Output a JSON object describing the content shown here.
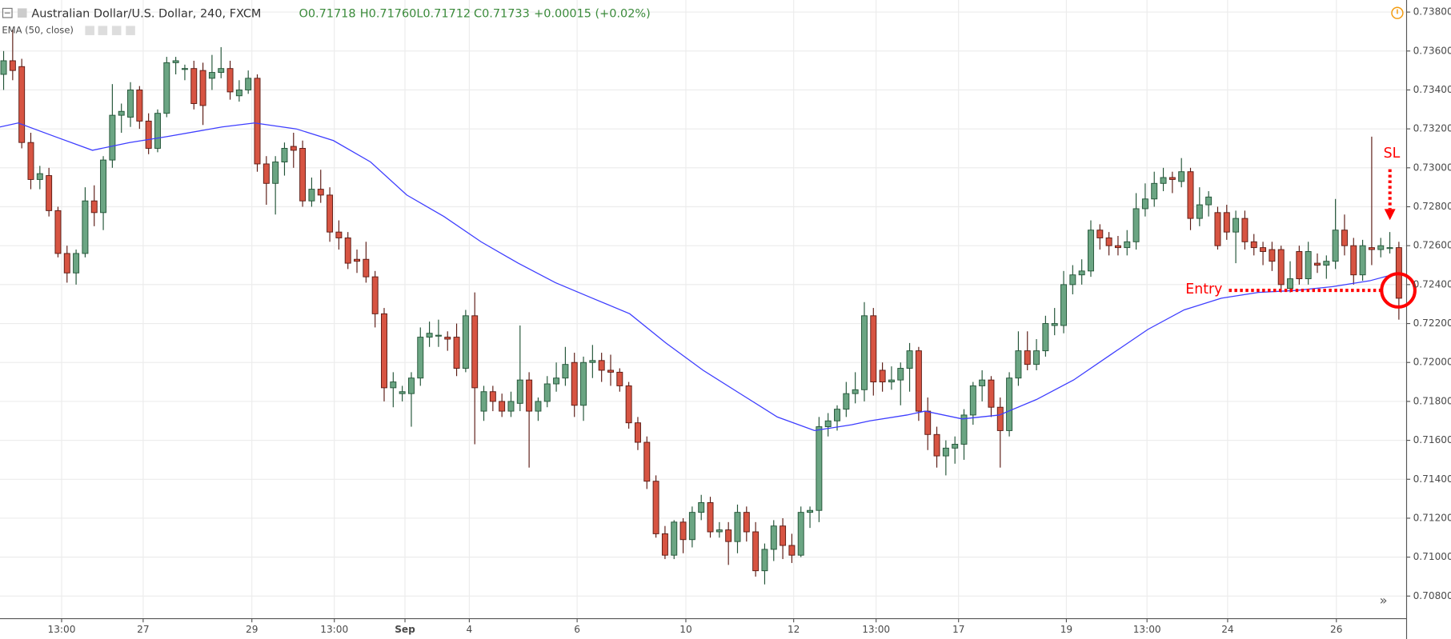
{
  "chart_data": {
    "type": "candlestick",
    "header": {
      "symbol": "Australian Dollar/U.S. Dollar, 240, FXCM",
      "open": "O0.71718",
      "high": "H0.71760",
      "low": "L0.71712",
      "close": "C0.71733",
      "change": "+0.00015 (+0.02%)"
    },
    "up_color": "#6ba583",
    "down_color": "#d75442",
    "ohlc": [
      [
        0.7348,
        0.736,
        0.734,
        0.7355
      ],
      [
        0.7355,
        0.7371,
        0.7345,
        0.735
      ],
      [
        0.7352,
        0.7356,
        0.731,
        0.7313
      ],
      [
        0.7313,
        0.7318,
        0.7289,
        0.7294
      ],
      [
        0.7294,
        0.7301,
        0.7289,
        0.7297
      ],
      [
        0.7296,
        0.73,
        0.7275,
        0.7278
      ],
      [
        0.7278,
        0.728,
        0.7254,
        0.7256
      ],
      [
        0.7256,
        0.726,
        0.7241,
        0.7246
      ],
      [
        0.7246,
        0.7258,
        0.724,
        0.7256
      ],
      [
        0.7256,
        0.729,
        0.7254,
        0.7283
      ],
      [
        0.7283,
        0.7291,
        0.727,
        0.7277
      ],
      [
        0.7277,
        0.7306,
        0.7268,
        0.7304
      ],
      [
        0.7304,
        0.7343,
        0.73,
        0.7327
      ],
      [
        0.7327,
        0.7333,
        0.7318,
        0.7329
      ],
      [
        0.7326,
        0.7344,
        0.7321,
        0.734
      ],
      [
        0.734,
        0.7342,
        0.732,
        0.7324
      ],
      [
        0.7324,
        0.7328,
        0.7307,
        0.731
      ],
      [
        0.731,
        0.733,
        0.7308,
        0.7328
      ],
      [
        0.7328,
        0.7357,
        0.7326,
        0.7354
      ],
      [
        0.7354,
        0.7357,
        0.7348,
        0.7355
      ],
      [
        0.7351,
        0.7353,
        0.7345,
        0.7351
      ],
      [
        0.7351,
        0.7355,
        0.733,
        0.7333
      ],
      [
        0.735,
        0.7354,
        0.7322,
        0.7332
      ],
      [
        0.7346,
        0.7358,
        0.734,
        0.7349
      ],
      [
        0.7349,
        0.7362,
        0.7346,
        0.7351
      ],
      [
        0.7351,
        0.7355,
        0.7335,
        0.7339
      ],
      [
        0.7337,
        0.7345,
        0.7334,
        0.734
      ],
      [
        0.734,
        0.735,
        0.7338,
        0.7346
      ],
      [
        0.7346,
        0.7348,
        0.7298,
        0.7302
      ],
      [
        0.7302,
        0.7306,
        0.7281,
        0.7292
      ],
      [
        0.7292,
        0.7306,
        0.7276,
        0.7303
      ],
      [
        0.7303,
        0.7313,
        0.7296,
        0.731
      ],
      [
        0.7311,
        0.7318,
        0.73,
        0.7309
      ],
      [
        0.731,
        0.7314,
        0.728,
        0.7283
      ],
      [
        0.7283,
        0.7295,
        0.728,
        0.7289
      ],
      [
        0.7289,
        0.7299,
        0.7282,
        0.7286
      ],
      [
        0.7286,
        0.729,
        0.7262,
        0.7267
      ],
      [
        0.7267,
        0.7273,
        0.7258,
        0.7264
      ],
      [
        0.7264,
        0.7267,
        0.7248,
        0.7251
      ],
      [
        0.7253,
        0.7258,
        0.7246,
        0.7252
      ],
      [
        0.7253,
        0.7262,
        0.7241,
        0.7244
      ],
      [
        0.7244,
        0.7247,
        0.7218,
        0.7225
      ],
      [
        0.7225,
        0.7228,
        0.718,
        0.7187
      ],
      [
        0.7187,
        0.7195,
        0.7177,
        0.719
      ],
      [
        0.7184,
        0.7188,
        0.718,
        0.7185
      ],
      [
        0.7184,
        0.7195,
        0.7167,
        0.7192
      ],
      [
        0.7192,
        0.7218,
        0.7188,
        0.7213
      ],
      [
        0.7213,
        0.7221,
        0.7208,
        0.7215
      ],
      [
        0.7214,
        0.7222,
        0.7208,
        0.7214
      ],
      [
        0.7213,
        0.7216,
        0.7206,
        0.7212
      ],
      [
        0.7213,
        0.722,
        0.7193,
        0.7197
      ],
      [
        0.7197,
        0.7227,
        0.7195,
        0.7224
      ],
      [
        0.7224,
        0.7236,
        0.7158,
        0.7187
      ],
      [
        0.7175,
        0.7188,
        0.717,
        0.7185
      ],
      [
        0.7185,
        0.7188,
        0.7175,
        0.718
      ],
      [
        0.718,
        0.7184,
        0.7172,
        0.7175
      ],
      [
        0.7175,
        0.7185,
        0.7172,
        0.718
      ],
      [
        0.7179,
        0.7219,
        0.7175,
        0.7191
      ],
      [
        0.7191,
        0.7195,
        0.7146,
        0.7175
      ],
      [
        0.7175,
        0.7182,
        0.717,
        0.718
      ],
      [
        0.718,
        0.7193,
        0.7177,
        0.7189
      ],
      [
        0.7189,
        0.72,
        0.7185,
        0.7192
      ],
      [
        0.7192,
        0.7208,
        0.7188,
        0.7199
      ],
      [
        0.72,
        0.7205,
        0.7172,
        0.7178
      ],
      [
        0.7178,
        0.7203,
        0.717,
        0.72
      ],
      [
        0.72,
        0.7209,
        0.7192,
        0.7201
      ],
      [
        0.7201,
        0.7205,
        0.719,
        0.7196
      ],
      [
        0.7196,
        0.7204,
        0.7188,
        0.7195
      ],
      [
        0.7195,
        0.7197,
        0.7185,
        0.7188
      ],
      [
        0.7188,
        0.719,
        0.7166,
        0.7169
      ],
      [
        0.7169,
        0.7172,
        0.7155,
        0.7159
      ],
      [
        0.7159,
        0.7162,
        0.7135,
        0.7139
      ],
      [
        0.7139,
        0.7142,
        0.711,
        0.7112
      ],
      [
        0.7112,
        0.7116,
        0.7099,
        0.7101
      ],
      [
        0.7101,
        0.7119,
        0.7099,
        0.7118
      ],
      [
        0.7118,
        0.712,
        0.7102,
        0.7109
      ],
      [
        0.7109,
        0.7126,
        0.7105,
        0.7123
      ],
      [
        0.7123,
        0.7132,
        0.7119,
        0.7128
      ],
      [
        0.7128,
        0.7131,
        0.711,
        0.7113
      ],
      [
        0.7113,
        0.7118,
        0.711,
        0.7114
      ],
      [
        0.7114,
        0.7118,
        0.7096,
        0.7108
      ],
      [
        0.7108,
        0.7127,
        0.7102,
        0.7123
      ],
      [
        0.7123,
        0.7126,
        0.7108,
        0.7113
      ],
      [
        0.7113,
        0.7118,
        0.709,
        0.7093
      ],
      [
        0.7093,
        0.7107,
        0.7086,
        0.7104
      ],
      [
        0.7104,
        0.7119,
        0.7098,
        0.7116
      ],
      [
        0.7116,
        0.712,
        0.7099,
        0.7106
      ],
      [
        0.7106,
        0.7112,
        0.7097,
        0.7101
      ],
      [
        0.7101,
        0.7126,
        0.71,
        0.7123
      ],
      [
        0.7123,
        0.7126,
        0.7115,
        0.7124
      ],
      [
        0.7124,
        0.7172,
        0.7118,
        0.7167
      ],
      [
        0.7167,
        0.7174,
        0.7162,
        0.717
      ],
      [
        0.717,
        0.7178,
        0.7165,
        0.7176
      ],
      [
        0.7176,
        0.719,
        0.7172,
        0.7184
      ],
      [
        0.7184,
        0.7195,
        0.7179,
        0.7186
      ],
      [
        0.7186,
        0.7231,
        0.718,
        0.7224
      ],
      [
        0.7224,
        0.7228,
        0.7183,
        0.719
      ],
      [
        0.7196,
        0.72,
        0.7185,
        0.719
      ],
      [
        0.719,
        0.7198,
        0.7186,
        0.7191
      ],
      [
        0.7191,
        0.72,
        0.7178,
        0.7197
      ],
      [
        0.7197,
        0.721,
        0.7185,
        0.7206
      ],
      [
        0.7206,
        0.7208,
        0.717,
        0.7175
      ],
      [
        0.7175,
        0.7182,
        0.7155,
        0.7163
      ],
      [
        0.7163,
        0.7167,
        0.7146,
        0.7152
      ],
      [
        0.7152,
        0.716,
        0.7142,
        0.7156
      ],
      [
        0.7156,
        0.7162,
        0.7148,
        0.7158
      ],
      [
        0.7158,
        0.7176,
        0.715,
        0.7173
      ],
      [
        0.7173,
        0.719,
        0.7168,
        0.7188
      ],
      [
        0.7188,
        0.7196,
        0.718,
        0.7191
      ],
      [
        0.7191,
        0.7193,
        0.7172,
        0.7177
      ],
      [
        0.7177,
        0.7182,
        0.7146,
        0.7165
      ],
      [
        0.7165,
        0.7195,
        0.7162,
        0.7192
      ],
      [
        0.7192,
        0.7216,
        0.7188,
        0.7206
      ],
      [
        0.7206,
        0.7216,
        0.7196,
        0.7199
      ],
      [
        0.7199,
        0.7212,
        0.7196,
        0.7206
      ],
      [
        0.7206,
        0.7224,
        0.7203,
        0.722
      ],
      [
        0.7219,
        0.7228,
        0.7214,
        0.722
      ],
      [
        0.7219,
        0.7247,
        0.7215,
        0.724
      ],
      [
        0.724,
        0.725,
        0.7235,
        0.7245
      ],
      [
        0.7245,
        0.7253,
        0.724,
        0.7247
      ],
      [
        0.7247,
        0.7273,
        0.7244,
        0.7268
      ],
      [
        0.7268,
        0.7271,
        0.7258,
        0.7264
      ],
      [
        0.7264,
        0.7267,
        0.7255,
        0.726
      ],
      [
        0.726,
        0.7265,
        0.7255,
        0.7259
      ],
      [
        0.7259,
        0.7268,
        0.7255,
        0.7262
      ],
      [
        0.7262,
        0.7287,
        0.7258,
        0.7279
      ],
      [
        0.7279,
        0.7292,
        0.7275,
        0.7284
      ],
      [
        0.7284,
        0.7298,
        0.728,
        0.7292
      ],
      [
        0.7292,
        0.73,
        0.7288,
        0.7295
      ],
      [
        0.7295,
        0.7298,
        0.7287,
        0.7294
      ],
      [
        0.7293,
        0.7305,
        0.729,
        0.7298
      ],
      [
        0.7298,
        0.73,
        0.7268,
        0.7274
      ],
      [
        0.7274,
        0.729,
        0.727,
        0.7281
      ],
      [
        0.7281,
        0.7288,
        0.7275,
        0.7285
      ],
      [
        0.7277,
        0.728,
        0.7258,
        0.726
      ],
      [
        0.7277,
        0.7281,
        0.7263,
        0.7267
      ],
      [
        0.7267,
        0.7278,
        0.7251,
        0.7274
      ],
      [
        0.7274,
        0.7278,
        0.7258,
        0.7262
      ],
      [
        0.7262,
        0.7266,
        0.7255,
        0.7259
      ],
      [
        0.7259,
        0.7262,
        0.725,
        0.7257
      ],
      [
        0.7258,
        0.7262,
        0.7247,
        0.7252
      ],
      [
        0.7258,
        0.726,
        0.7236,
        0.724
      ],
      [
        0.7238,
        0.7252,
        0.7236,
        0.7243
      ],
      [
        0.7257,
        0.726,
        0.724,
        0.7243
      ],
      [
        0.7243,
        0.7262,
        0.724,
        0.7257
      ],
      [
        0.7251,
        0.7256,
        0.7246,
        0.725
      ],
      [
        0.725,
        0.7255,
        0.7243,
        0.7252
      ],
      [
        0.7252,
        0.7284,
        0.7248,
        0.7268
      ],
      [
        0.7268,
        0.7276,
        0.7255,
        0.726
      ],
      [
        0.726,
        0.7264,
        0.724,
        0.7245
      ],
      [
        0.7245,
        0.7263,
        0.7242,
        0.726
      ],
      [
        0.7259,
        0.7316,
        0.725,
        0.7258
      ],
      [
        0.7258,
        0.7264,
        0.7254,
        0.726
      ],
      [
        0.7259,
        0.7267,
        0.7256,
        0.7259
      ],
      [
        0.7259,
        0.7262,
        0.7222,
        0.7233
      ]
    ],
    "ema": {
      "name": "EMA (50, close)",
      "color": "#3d3dff",
      "x": [
        -0.4,
        1.6,
        5.7,
        9.8,
        13.9,
        18.0,
        24.1,
        27.7,
        32.3,
        36.4,
        40.5,
        44.5,
        48.6,
        52.7,
        56.8,
        60.9,
        65.0,
        69.1,
        73.1,
        77.2,
        81.3,
        85.4,
        89.5,
        93.6,
        95.6,
        99.7,
        101.7,
        105.8,
        109.9,
        114.0,
        118.1,
        122.2,
        126.3,
        130.3,
        134.4,
        138.5,
        142.6,
        146.7,
        150.8,
        154.0
      ],
      "values": [
        0.7321,
        0.7323,
        0.7316,
        0.7309,
        0.7313,
        0.7316,
        0.7321,
        0.7323,
        0.732,
        0.7314,
        0.7303,
        0.7286,
        0.7275,
        0.7262,
        0.7251,
        0.7241,
        0.7233,
        0.7225,
        0.721,
        0.7196,
        0.7184,
        0.7172,
        0.7165,
        0.7168,
        0.717,
        0.7173,
        0.7175,
        0.7171,
        0.7173,
        0.7181,
        0.7191,
        0.7204,
        0.7217,
        0.7227,
        0.7233,
        0.7236,
        0.7237,
        0.7239,
        0.7242,
        0.7246
      ]
    },
    "xlim": [
      -0.4,
      154.85
    ],
    "xticks": [
      {
        "value": 6.4,
        "label": "13:00"
      },
      {
        "value": 15.4,
        "label": "27"
      },
      {
        "value": 27.4,
        "label": "29"
      },
      {
        "value": 36.5,
        "label": "13:00"
      },
      {
        "value": 44.3,
        "label": "Sep"
      },
      {
        "value": 51.4,
        "label": "4"
      },
      {
        "value": 63.3,
        "label": "6"
      },
      {
        "value": 75.3,
        "label": "10"
      },
      {
        "value": 87.2,
        "label": "12"
      },
      {
        "value": 96.3,
        "label": "13:00"
      },
      {
        "value": 105.4,
        "label": "17"
      },
      {
        "value": 117.3,
        "label": "19"
      },
      {
        "value": 126.2,
        "label": "13:00"
      },
      {
        "value": 135.1,
        "label": "24"
      },
      {
        "value": 147.1,
        "label": "26"
      }
    ],
    "ylim": [
      0.70684,
      0.73862
    ],
    "yticks": [
      {
        "value": 0.708,
        "label": "0.70800"
      },
      {
        "value": 0.71,
        "label": "0.71000"
      },
      {
        "value": 0.712,
        "label": "0.71200"
      },
      {
        "value": 0.714,
        "label": "0.71400"
      },
      {
        "value": 0.716,
        "label": "0.71600"
      },
      {
        "value": 0.718,
        "label": "0.71800"
      },
      {
        "value": 0.72,
        "label": "0.72000"
      },
      {
        "value": 0.722,
        "label": "0.72200"
      },
      {
        "value": 0.724,
        "label": "0.72400"
      },
      {
        "value": 0.726,
        "label": "0.72600"
      },
      {
        "value": 0.728,
        "label": "0.72800"
      },
      {
        "value": 0.73,
        "label": "0.73000"
      },
      {
        "value": 0.732,
        "label": "0.73200"
      },
      {
        "value": 0.734,
        "label": "0.73400"
      },
      {
        "value": 0.736,
        "label": "0.73600"
      },
      {
        "value": 0.738,
        "label": "0.73800"
      }
    ],
    "grid": true,
    "annotations": [
      "SL",
      "Entry"
    ]
  }
}
